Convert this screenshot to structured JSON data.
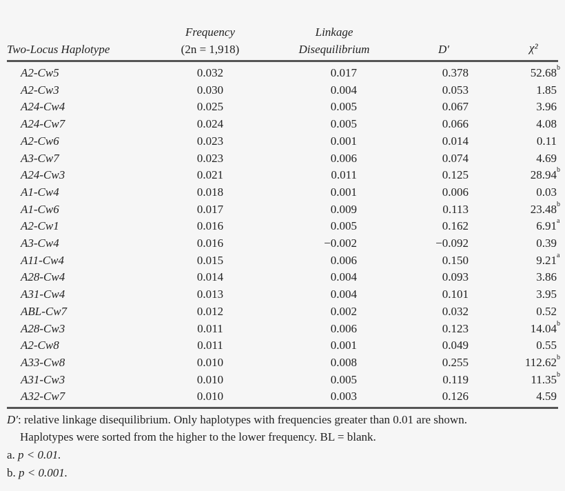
{
  "table": {
    "headers": {
      "haplotype": "Two-Locus Haplotype",
      "frequency_line1": "Frequency",
      "frequency_line2": "(2n = 1,918)",
      "ld_line1": "Linkage",
      "ld_line2": "Disequilibrium",
      "dprime": "D′",
      "chi2": "χ²"
    },
    "rows": [
      {
        "haplotype": "A2-Cw5",
        "frequency": "0.032",
        "ld": "0.017",
        "dprime": "0.378",
        "chi2": "52.68",
        "sig": "b"
      },
      {
        "haplotype": "A2-Cw3",
        "frequency": "0.030",
        "ld": "0.004",
        "dprime": "0.053",
        "chi2": "1.85",
        "sig": ""
      },
      {
        "haplotype": "A24-Cw4",
        "frequency": "0.025",
        "ld": "0.005",
        "dprime": "0.067",
        "chi2": "3.96",
        "sig": ""
      },
      {
        "haplotype": "A24-Cw7",
        "frequency": "0.024",
        "ld": "0.005",
        "dprime": "0.066",
        "chi2": "4.08",
        "sig": ""
      },
      {
        "haplotype": "A2-Cw6",
        "frequency": "0.023",
        "ld": "0.001",
        "dprime": "0.014",
        "chi2": "0.11",
        "sig": ""
      },
      {
        "haplotype": "A3-Cw7",
        "frequency": "0.023",
        "ld": "0.006",
        "dprime": "0.074",
        "chi2": "4.69",
        "sig": ""
      },
      {
        "haplotype": "A24-Cw3",
        "frequency": "0.021",
        "ld": "0.011",
        "dprime": "0.125",
        "chi2": "28.94",
        "sig": "b"
      },
      {
        "haplotype": "A1-Cw4",
        "frequency": "0.018",
        "ld": "0.001",
        "dprime": "0.006",
        "chi2": "0.03",
        "sig": ""
      },
      {
        "haplotype": "A1-Cw6",
        "frequency": "0.017",
        "ld": "0.009",
        "dprime": "0.113",
        "chi2": "23.48",
        "sig": "b"
      },
      {
        "haplotype": "A2-Cw1",
        "frequency": "0.016",
        "ld": "0.005",
        "dprime": "0.162",
        "chi2": "6.91",
        "sig": "a"
      },
      {
        "haplotype": "A3-Cw4",
        "frequency": "0.016",
        "ld": "−0.002",
        "dprime": "−0.092",
        "chi2": "0.39",
        "sig": ""
      },
      {
        "haplotype": "A11-Cw4",
        "frequency": "0.015",
        "ld": "0.006",
        "dprime": "0.150",
        "chi2": "9.21",
        "sig": "a"
      },
      {
        "haplotype": "A28-Cw4",
        "frequency": "0.014",
        "ld": "0.004",
        "dprime": "0.093",
        "chi2": "3.86",
        "sig": ""
      },
      {
        "haplotype": "A31-Cw4",
        "frequency": "0.013",
        "ld": "0.004",
        "dprime": "0.101",
        "chi2": "3.95",
        "sig": ""
      },
      {
        "haplotype": "ABL-Cw7",
        "frequency": "0.012",
        "ld": "0.002",
        "dprime": "0.032",
        "chi2": "0.52",
        "sig": ""
      },
      {
        "haplotype": "A28-Cw3",
        "frequency": "0.011",
        "ld": "0.006",
        "dprime": "0.123",
        "chi2": "14.04",
        "sig": "b"
      },
      {
        "haplotype": "A2-Cw8",
        "frequency": "0.011",
        "ld": "0.001",
        "dprime": "0.049",
        "chi2": "0.55",
        "sig": ""
      },
      {
        "haplotype": "A33-Cw8",
        "frequency": "0.010",
        "ld": "0.008",
        "dprime": "0.255",
        "chi2": "112.62",
        "sig": "b"
      },
      {
        "haplotype": "A31-Cw3",
        "frequency": "0.010",
        "ld": "0.005",
        "dprime": "0.119",
        "chi2": "11.35",
        "sig": "b"
      },
      {
        "haplotype": "A32-Cw7",
        "frequency": "0.010",
        "ld": "0.003",
        "dprime": "0.126",
        "chi2": "4.59",
        "sig": ""
      }
    ]
  },
  "footnotes": {
    "dprime_term": "D′",
    "note_line1": ": relative linkage disequilibrium. Only haplotypes with frequencies greater than 0.01 are shown.",
    "note_line2": "Haplotypes were sorted from the higher to the lower frequency. BL = blank.",
    "a_label": "a.",
    "a_text": "p < 0.01.",
    "b_label": "b.",
    "b_text": "p < 0.001."
  }
}
